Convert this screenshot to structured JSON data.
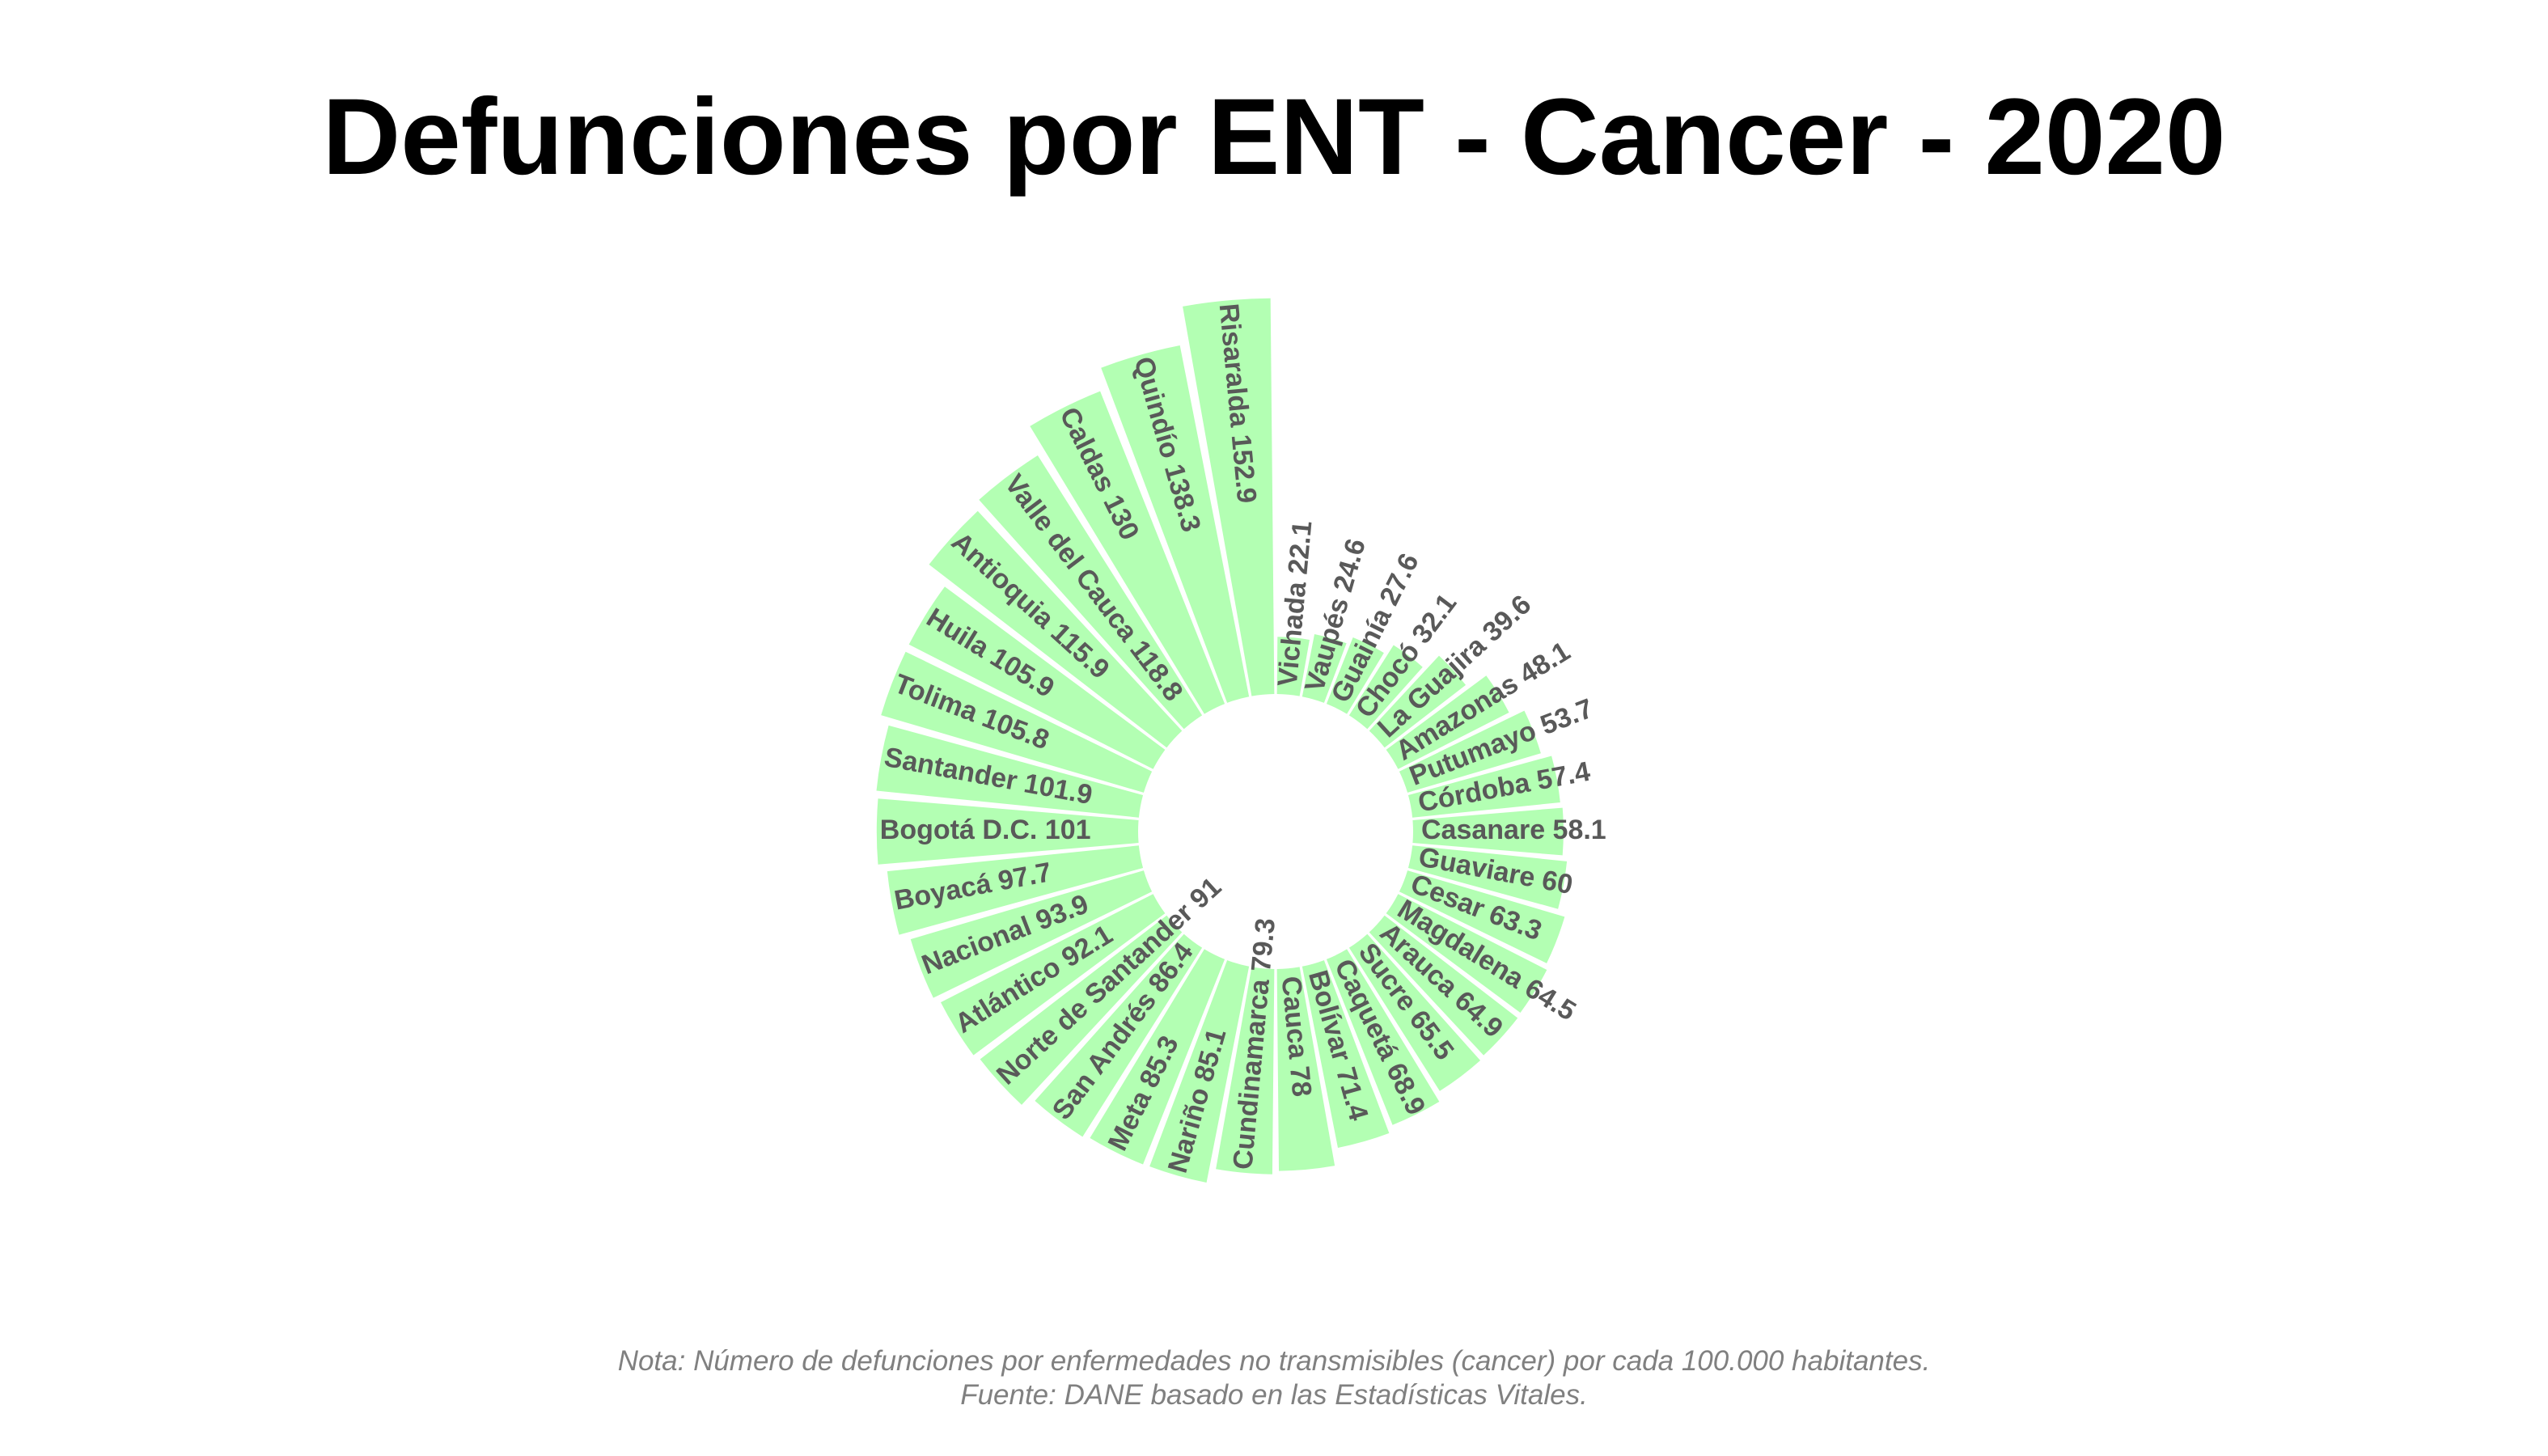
{
  "chart_data": {
    "type": "bar",
    "layout": "circular",
    "title": "Defunciones por ENT - Cancer - 2020",
    "bar_color": "#b3ffb3",
    "label_color": "#595959",
    "note": "Nota: Número de defunciones por enfermedades no transmisibles (cancer) por cada 100.000 habitantes.",
    "source": "Fuente: DANE basado en las Estadísticas Vitales.",
    "categories": [
      "Vichada",
      "Vaupés",
      "Guainía",
      "Chocó",
      "La Guajira",
      "Amazonas",
      "Putumayo",
      "Córdoba",
      "Casanare",
      "Guaviare",
      "Cesar",
      "Magdalena",
      "Arauca",
      "Sucre",
      "Caquetá",
      "Bolívar",
      "Cauca",
      "Cundinamarca",
      "Nariño",
      "Meta",
      "San Andrés",
      "Norte de Santander",
      "Atlántico",
      "Nacional",
      "Boyacá",
      "Bogotá D.C.",
      "Santander",
      "Tolima",
      "Huila",
      "Antioquia",
      "Valle del Cauca",
      "Caldas",
      "Quindío",
      "Risaralda"
    ],
    "values": [
      22.1,
      24.6,
      27.6,
      32.1,
      39.6,
      48.1,
      53.7,
      57.4,
      58.1,
      60,
      63.3,
      64.5,
      64.9,
      65.5,
      68.9,
      71.4,
      78,
      79.3,
      85.1,
      85.3,
      86.4,
      91,
      92.1,
      93.9,
      97.7,
      101,
      101.9,
      105.8,
      105.9,
      115.9,
      118.8,
      130,
      138.3,
      152.9
    ],
    "labels": [
      "Vichada 22.1",
      "Vaupés 24.6",
      "Guainía 27.6",
      "Chocó 32.1",
      "La Guajira 39.6",
      "Amazonas 48.1",
      "Putumayo 53.7",
      "Córdoba 57.4",
      "Casanare 58.1",
      "Guaviare 60",
      "Cesar 63.3",
      "Magdalena 64.5",
      "Arauca 64.9",
      "Sucre 65.5",
      "Caquetá 68.9",
      "Bolívar 71.4",
      "Cauca 78",
      "Cundinamarca 79.3",
      "Nariño 85.1",
      "Meta 85.3",
      "San Andrés 86.4",
      "Norte de Santander 91",
      "Atlántico 92.1",
      "Nacional 93.9",
      "Boyacá 97.7",
      "Bogotá D.C. 101",
      "Santander 101.9",
      "Tolima 105.8",
      "Huila 105.9",
      "Antioquia 115.9",
      "Valle del Cauca 118.8",
      "Caldas 130",
      "Quindío 138.3",
      "Risaralda 152.9"
    ],
    "xlabel": "",
    "ylabel": "",
    "grid": false,
    "legend": "none"
  }
}
